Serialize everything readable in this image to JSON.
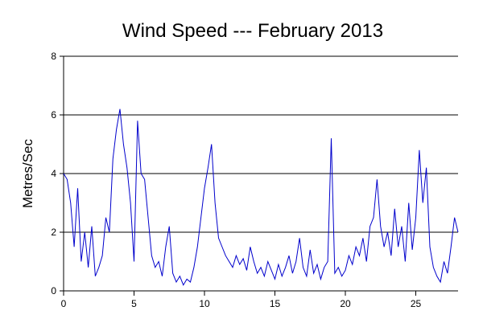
{
  "chart_data": {
    "type": "line",
    "title": "Wind Speed --- February 2013",
    "ylabel": "Metres/Sec",
    "x": [
      0,
      0.25,
      0.5,
      0.75,
      1,
      1.25,
      1.5,
      1.75,
      2,
      2.25,
      2.5,
      2.75,
      3,
      3.25,
      3.5,
      3.75,
      4,
      4.25,
      4.5,
      4.75,
      5,
      5.25,
      5.5,
      5.75,
      6,
      6.25,
      6.5,
      6.75,
      7,
      7.25,
      7.5,
      7.75,
      8,
      8.25,
      8.5,
      8.75,
      9,
      9.25,
      9.5,
      9.75,
      10,
      10.25,
      10.5,
      10.75,
      11,
      11.25,
      11.5,
      11.75,
      12,
      12.25,
      12.5,
      12.75,
      13,
      13.25,
      13.5,
      13.75,
      14,
      14.25,
      14.5,
      14.75,
      15,
      15.25,
      15.5,
      15.75,
      16,
      16.25,
      16.5,
      16.75,
      17,
      17.25,
      17.5,
      17.75,
      18,
      18.25,
      18.5,
      18.75,
      19,
      19.25,
      19.5,
      19.75,
      20,
      20.25,
      20.5,
      20.75,
      21,
      21.25,
      21.5,
      21.75,
      22,
      22.25,
      22.5,
      22.75,
      23,
      23.25,
      23.5,
      23.75,
      24,
      24.25,
      24.5,
      24.75,
      25,
      25.25,
      25.5,
      25.75,
      26,
      26.25,
      26.5,
      26.75,
      27,
      27.25,
      27.5,
      27.75,
      28
    ],
    "series": [
      {
        "name": "Wind Speed",
        "color": "#0000cc",
        "values": [
          4.0,
          3.8,
          3.0,
          1.5,
          3.5,
          1.0,
          2.0,
          0.8,
          2.2,
          0.5,
          0.8,
          1.2,
          2.5,
          2.0,
          4.5,
          5.5,
          6.2,
          5.0,
          4.2,
          3.0,
          1.0,
          5.8,
          4.0,
          3.8,
          2.5,
          1.2,
          0.8,
          1.0,
          0.5,
          1.5,
          2.2,
          0.6,
          0.3,
          0.5,
          0.2,
          0.4,
          0.3,
          0.8,
          1.5,
          2.5,
          3.5,
          4.2,
          5.0,
          3.0,
          1.8,
          1.5,
          1.2,
          1.0,
          0.8,
          1.2,
          0.9,
          1.1,
          0.7,
          1.5,
          1.0,
          0.6,
          0.8,
          0.5,
          1.0,
          0.7,
          0.4,
          0.9,
          0.5,
          0.8,
          1.2,
          0.6,
          1.0,
          1.8,
          0.8,
          0.5,
          1.4,
          0.6,
          0.9,
          0.4,
          0.8,
          1.0,
          5.2,
          0.6,
          0.8,
          0.5,
          0.7,
          1.2,
          0.9,
          1.5,
          1.2,
          1.8,
          1.0,
          2.2,
          2.5,
          3.8,
          2.2,
          1.5,
          2.0,
          1.2,
          2.8,
          1.5,
          2.2,
          1.0,
          3.0,
          1.4,
          2.5,
          4.8,
          3.0,
          4.2,
          1.5,
          0.8,
          0.5,
          0.3,
          1.0,
          0.6,
          1.5,
          2.5,
          2.0
        ]
      }
    ],
    "xlim": [
      0,
      28
    ],
    "ylim": [
      0,
      8
    ],
    "xticks": [
      0,
      5,
      10,
      15,
      20,
      25
    ],
    "yticks": [
      0,
      2,
      4,
      6,
      8
    ],
    "grid": true
  }
}
